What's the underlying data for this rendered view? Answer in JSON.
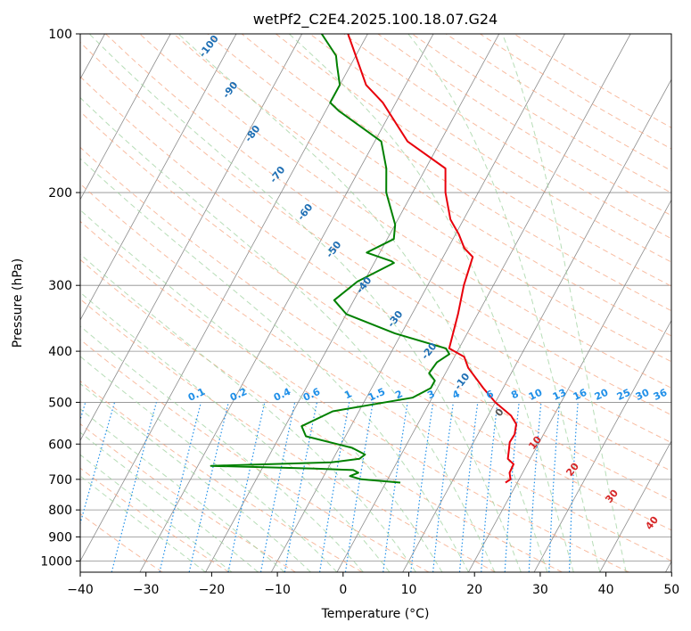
{
  "chart_data": {
    "type": "line",
    "subtype": "skew-t log-p diagram",
    "title": "wetPf2_C2E4.2025.100.18.07.G24",
    "xlabel": "Temperature (°C)",
    "ylabel": "Pressure (hPa)",
    "xlim": [
      -40,
      50
    ],
    "ylim": [
      1050,
      100
    ],
    "yscale": "log",
    "grid": true,
    "x_ticks": [
      "−40",
      "−30",
      "−20",
      "−10",
      "0",
      "10",
      "20",
      "30",
      "40",
      "50"
    ],
    "y_ticks": [
      "100",
      "200",
      "300",
      "400",
      "500",
      "600",
      "700",
      "800",
      "900",
      "1000"
    ],
    "colors": {
      "temperature": "#e8000b",
      "dewpoint": "#008000",
      "isotherm": "#808080",
      "dry_adiabat": "#f5a582",
      "moist_adiabat": "#9fd19f",
      "mixing_ratio": "#1f8fe8",
      "dry_label": "#1f6fb4",
      "moist_label": "#d62728"
    },
    "series": [
      {
        "role": "temperature",
        "points": [
          [
            18.2,
            710
          ],
          [
            18.7,
            700
          ],
          [
            18.0,
            680
          ],
          [
            17.9,
            655
          ],
          [
            16.6,
            640
          ],
          [
            16.0,
            615
          ],
          [
            15.5,
            595
          ],
          [
            15.6,
            575
          ],
          [
            15.0,
            550
          ],
          [
            13.5,
            530
          ],
          [
            10.0,
            500
          ],
          [
            7.0,
            470
          ],
          [
            3.0,
            430
          ],
          [
            1.5,
            410
          ],
          [
            -1.5,
            395
          ],
          [
            -3.0,
            340
          ],
          [
            -4.5,
            300
          ],
          [
            -5.5,
            265
          ],
          [
            -7.5,
            255
          ],
          [
            -9.5,
            240
          ],
          [
            -12.0,
            225
          ],
          [
            -15.0,
            200
          ],
          [
            -17.0,
            180
          ],
          [
            -25.0,
            160
          ],
          [
            -32.0,
            135
          ],
          [
            -36.0,
            125
          ],
          [
            -40.0,
            110
          ],
          [
            -43.0,
            100
          ]
        ]
      },
      {
        "role": "dewpoint",
        "points": [
          [
            2.2,
            710
          ],
          [
            -4.0,
            700
          ],
          [
            -6.0,
            690
          ],
          [
            -5.0,
            680
          ],
          [
            -6.0,
            672
          ],
          [
            -12.0,
            668
          ],
          [
            -28.0,
            660
          ],
          [
            -10.0,
            650
          ],
          [
            -6.0,
            640
          ],
          [
            -5.5,
            628
          ],
          [
            -8.0,
            610
          ],
          [
            -16.0,
            580
          ],
          [
            -17.5,
            555
          ],
          [
            -14.0,
            520
          ],
          [
            -3.0,
            490
          ],
          [
            -1.0,
            470
          ],
          [
            -1.0,
            455
          ],
          [
            -2.5,
            440
          ],
          [
            -2.2,
            420
          ],
          [
            -1.0,
            405
          ],
          [
            -2.0,
            395
          ],
          [
            -11.0,
            370
          ],
          [
            -20.0,
            340
          ],
          [
            -23.0,
            320
          ],
          [
            -21.0,
            295
          ],
          [
            -17.0,
            272
          ],
          [
            -17.5,
            270
          ],
          [
            -22.0,
            260
          ],
          [
            -19.0,
            245
          ],
          [
            -20.0,
            230
          ],
          [
            -24.0,
            200
          ],
          [
            -26.0,
            180
          ],
          [
            -29.0,
            160
          ],
          [
            -38.0,
            140
          ],
          [
            -40.0,
            135
          ],
          [
            -40.0,
            125
          ],
          [
            -42.0,
            115
          ],
          [
            -43.0,
            110
          ],
          [
            -47.0,
            100
          ]
        ]
      }
    ],
    "dry_adiabat_labels": [
      "-100",
      "-90",
      "-80",
      "-70",
      "-60",
      "-50",
      "-40",
      "-30",
      "-20",
      "-10"
    ],
    "moist_adiabat_labels": [
      "0",
      "10",
      "20",
      "30",
      "40"
    ],
    "mixing_ratio_labels": [
      "0.1",
      "0.2",
      "0.4",
      "0.6",
      "1",
      "1.5",
      "2",
      "3",
      "4",
      "6",
      "8",
      "10",
      "13",
      "16",
      "20",
      "25",
      "30",
      "36"
    ]
  }
}
